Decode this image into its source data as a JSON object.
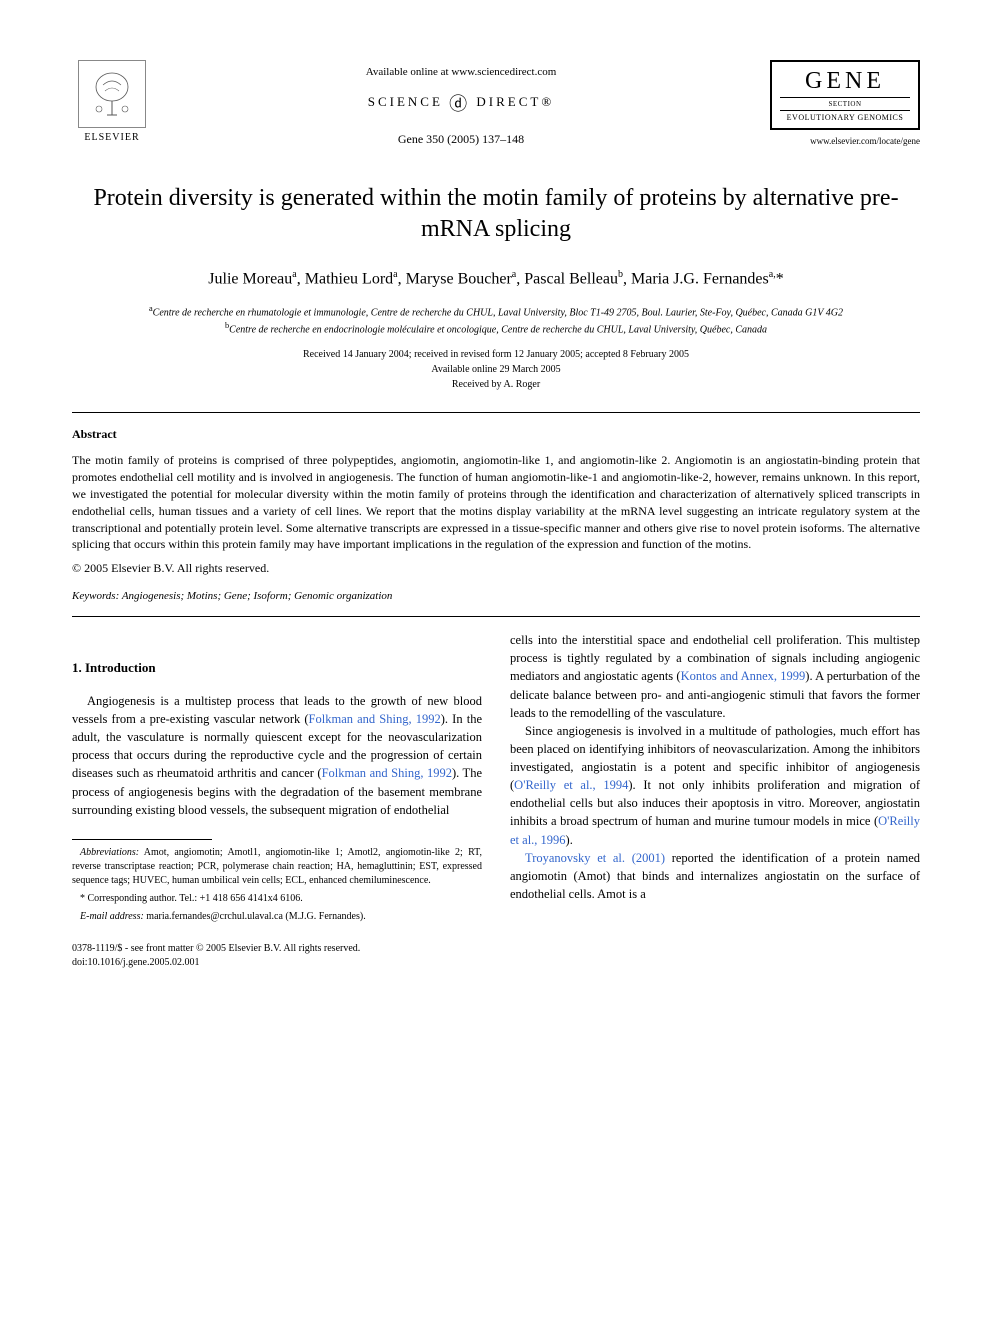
{
  "header": {
    "elsevier_label": "ELSEVIER",
    "available_online": "Available online at www.sciencedirect.com",
    "science_direct_left": "SCIENCE",
    "science_direct_right": "DIRECT®",
    "citation": "Gene 350 (2005) 137–148",
    "gene_title": "GENE",
    "gene_section": "SECTION",
    "gene_subtitle": "EVOLUTIONARY GENOMICS",
    "journal_url": "www.elsevier.com/locate/gene"
  },
  "article": {
    "title": "Protein diversity is generated within the motin family of proteins by alternative pre-mRNA splicing",
    "authors_html": "Julie Moreau<sup>a</sup>, Mathieu Lord<sup>a</sup>, Maryse Boucher<sup>a</sup>, Pascal Belleau<sup>b</sup>, Maria J.G. Fernandes<sup>a,</sup>*",
    "affiliation_a": "Centre de recherche en rhumatologie et immunologie, Centre de recherche du CHUL, Laval University, Bloc T1-49 2705, Boul. Laurier, Ste-Foy, Québec, Canada G1V 4G2",
    "affiliation_b": "Centre de recherche en endocrinologie moléculaire et oncologique, Centre de recherche du CHUL, Laval University, Québec, Canada",
    "received": "Received 14 January 2004; received in revised form 12 January 2005; accepted 8 February 2005",
    "available": "Available online 29 March 2005",
    "received_by": "Received by A. Roger"
  },
  "abstract": {
    "label": "Abstract",
    "body": "The motin family of proteins is comprised of three polypeptides, angiomotin, angiomotin-like 1, and angiomotin-like 2. Angiomotin is an angiostatin-binding protein that promotes endothelial cell motility and is involved in angiogenesis. The function of human angiomotin-like-1 and angiomotin-like-2, however, remains unknown. In this report, we investigated the potential for molecular diversity within the motin family of proteins through the identification and characterization of alternatively spliced transcripts in endothelial cells, human tissues and a variety of cell lines. We report that the motins display variability at the mRNA level suggesting an intricate regulatory system at the transcriptional and potentially protein level. Some alternative transcripts are expressed in a tissue-specific manner and others give rise to novel protein isoforms. The alternative splicing that occurs within this protein family may have important implications in the regulation of the expression and function of the motins.",
    "copyright": "© 2005 Elsevier B.V. All rights reserved."
  },
  "keywords": {
    "label": "Keywords:",
    "list": "Angiogenesis; Motins; Gene; Isoform; Genomic organization"
  },
  "section1": {
    "title": "1. Introduction",
    "para1_a": "Angiogenesis is a multistep process that leads to the growth of new blood vessels from a pre-existing vascular network (",
    "ref1": "Folkman and Shing, 1992",
    "para1_b": "). In the adult, the vasculature is normally quiescent except for the neovascularization process that occurs during the reproductive cycle and the progression of certain diseases such as rheumatoid arthritis and cancer (",
    "ref2": "Folkman and Shing, 1992",
    "para1_c": "). The process of angiogenesis begins with the degradation of the basement membrane surrounding existing blood vessels, the subsequent migration of endothelial",
    "para2_a": "cells into the interstitial space and endothelial cell proliferation. This multistep process is tightly regulated by a combination of signals including angiogenic mediators and angiostatic agents (",
    "ref3": "Kontos and Annex, 1999",
    "para2_b": "). A perturbation of the delicate balance between pro- and anti-angiogenic stimuli that favors the former leads to the remodelling of the vasculature.",
    "para3_a": "Since angiogenesis is involved in a multitude of pathologies, much effort has been placed on identifying inhibitors of neovascularization. Among the inhibitors investigated, angiostatin is a potent and specific inhibitor of angiogenesis (",
    "ref4": "O'Reilly et al., 1994",
    "para3_b": "). It not only inhibits proliferation and migration of endothelial cells but also induces their apoptosis in vitro. Moreover, angiostatin inhibits a broad spectrum of human and murine tumour models in mice (",
    "ref5": "O'Reilly et al., 1996",
    "para3_c": ").",
    "para4_a_ref": "Troyanovsky et al. (2001)",
    "para4_b": " reported the identification of a protein named angiomotin (Amot) that binds and internalizes angiostatin on the surface of endothelial cells. Amot is a"
  },
  "footnotes": {
    "abbrev_label": "Abbreviations:",
    "abbrev_text": " Amot, angiomotin; Amotl1, angiomotin-like 1; Amotl2, angiomotin-like 2; RT, reverse transcriptase reaction; PCR, polymerase chain reaction; HA, hemagluttinin; EST, expressed sequence tags; HUVEC, human umbilical vein cells; ECL, enhanced chemiluminescence.",
    "corresponding": "* Corresponding author. Tel.: +1 418 656 4141x4 6106.",
    "email_label": "E-mail address:",
    "email": " maria.fernandes@crchul.ulaval.ca (M.J.G. Fernandes)."
  },
  "bottom": {
    "issn": "0378-1119/$ - see front matter © 2005 Elsevier B.V. All rights reserved.",
    "doi": "doi:10.1016/j.gene.2005.02.001"
  },
  "colors": {
    "link": "#3366cc",
    "text": "#000000",
    "bg": "#ffffff"
  }
}
